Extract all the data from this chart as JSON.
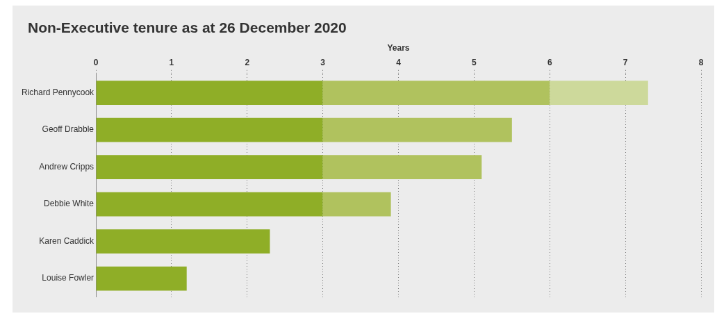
{
  "chart_data": {
    "type": "bar",
    "title": "Non-Executive tenure as at 26 December 2020",
    "xlabel": "Years",
    "orientation": "horizontal",
    "stacked": true,
    "categories": [
      "Richard Pennycook",
      "Geoff Drabble",
      "Andrew Cripps",
      "Debbie White",
      "Karen Caddick",
      "Louise Fowler"
    ],
    "series": [
      {
        "color": "#8fae27",
        "values": [
          3,
          3,
          3,
          3,
          2.3,
          1.2
        ]
      },
      {
        "color": "#b0c25e",
        "values": [
          3,
          2.5,
          2.1,
          0.9,
          null,
          null
        ]
      },
      {
        "color": "#cdd99b",
        "values": [
          1.3,
          null,
          null,
          null,
          null,
          null
        ]
      }
    ],
    "xlim": [
      0,
      8
    ],
    "xticks": [
      0,
      1,
      2,
      3,
      4,
      5,
      6,
      7,
      8
    ],
    "grid": "x",
    "legend": false
  }
}
